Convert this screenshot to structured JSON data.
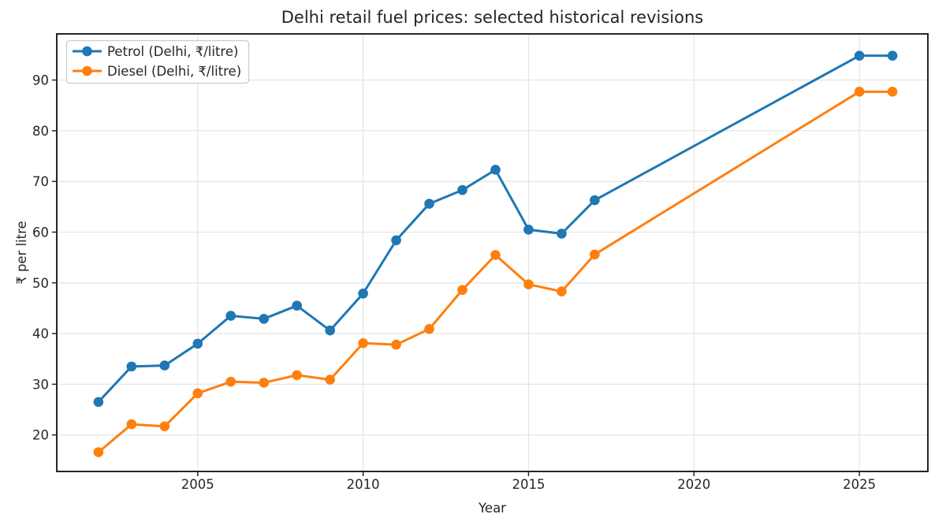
{
  "chart_data": {
    "type": "line",
    "title": "Delhi retail fuel prices: selected historical revisions",
    "xlabel": "Year",
    "ylabel": "₹ per litre",
    "x": [
      2002,
      2003,
      2004,
      2005,
      2006,
      2007,
      2008,
      2009,
      2010,
      2011,
      2012,
      2013,
      2014,
      2015,
      2016,
      2017,
      2025,
      2026
    ],
    "series": [
      {
        "name": "Petrol (Delhi, ₹/litre)",
        "color": "#1f77b4",
        "values": [
          26.5,
          33.5,
          33.7,
          38.0,
          43.5,
          42.9,
          45.5,
          40.6,
          47.9,
          58.4,
          65.6,
          68.3,
          72.3,
          60.5,
          59.7,
          66.3,
          94.8,
          94.8
        ]
      },
      {
        "name": "Diesel (Delhi, ₹/litre)",
        "color": "#ff7f0e",
        "values": [
          16.6,
          22.1,
          21.7,
          28.2,
          30.5,
          30.3,
          31.8,
          30.9,
          38.1,
          37.8,
          40.9,
          48.6,
          55.5,
          49.7,
          48.3,
          55.6,
          87.7,
          87.7
        ]
      }
    ],
    "xticks": [
      2005,
      2010,
      2015,
      2020,
      2025
    ],
    "xtick_labels": [
      "2005",
      "2010",
      "2015",
      "2020",
      "2025"
    ],
    "yticks": [
      20,
      30,
      40,
      50,
      60,
      70,
      80,
      90
    ],
    "ytick_labels": [
      "20",
      "30",
      "40",
      "50",
      "60",
      "70",
      "80",
      "90"
    ],
    "xlim": [
      2000.74,
      2027.07
    ],
    "ylim": [
      12.8,
      99.1
    ],
    "grid": true,
    "legend_position": "upper left"
  },
  "style_colors": {
    "background": "#ffffff",
    "grid": "#e4e4e4",
    "spine": "#262626",
    "text": "#262626",
    "legend_border": "#cccccc",
    "legend_background": "#ffffff"
  }
}
